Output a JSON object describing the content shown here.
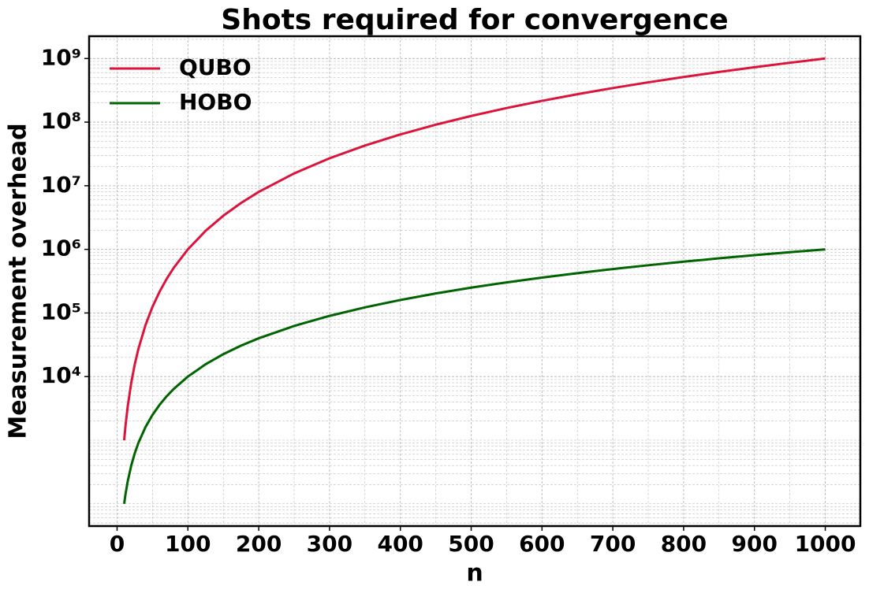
{
  "chart_data": {
    "type": "line",
    "title": "Shots required for convergence",
    "xlabel": "n",
    "ylabel": "Measurement overhead",
    "x": [
      10,
      12,
      15,
      20,
      25,
      30,
      40,
      50,
      60,
      70,
      80,
      100,
      125,
      150,
      175,
      200,
      250,
      300,
      350,
      400,
      450,
      500,
      550,
      600,
      650,
      700,
      750,
      800,
      850,
      900,
      950,
      1000
    ],
    "series": [
      {
        "name": "QUBO",
        "color": "#dc143c",
        "values": [
          1000,
          1728,
          3375,
          8000,
          15625,
          27000,
          64000,
          125000,
          216000,
          343000,
          512000,
          1000000,
          1953125,
          3375000,
          5359375,
          8000000,
          15625000,
          27000000,
          42875000,
          64000000,
          91125000,
          125000000,
          166375000,
          216000000,
          274625000,
          343000000,
          421875000,
          512000000,
          614125000,
          729000000,
          857375000,
          1000000000
        ]
      },
      {
        "name": "HOBO",
        "color": "#006400",
        "values": [
          100,
          144,
          225,
          400,
          625,
          900,
          1600,
          2500,
          3600,
          4900,
          6400,
          10000,
          15625,
          22500,
          30625,
          40000,
          62500,
          90000,
          122500,
          160000,
          202500,
          250000,
          302500,
          360000,
          422500,
          490000,
          562500,
          640000,
          722500,
          810000,
          902500,
          1000000
        ]
      }
    ],
    "xlim": [
      -39.5,
      1049.5
    ],
    "xticks": [
      0,
      100,
      200,
      300,
      400,
      500,
      600,
      700,
      800,
      900,
      1000
    ],
    "ylim": [
      44.7,
      2240000000
    ],
    "yscale": "log",
    "yticks": [
      {
        "value": 10000,
        "label": "10⁴"
      },
      {
        "value": 100000,
        "label": "10⁵"
      },
      {
        "value": 1000000,
        "label": "10⁶"
      },
      {
        "value": 10000000,
        "label": "10⁷"
      },
      {
        "value": 100000000,
        "label": "10⁸"
      },
      {
        "value": 1000000000,
        "label": "10⁹"
      }
    ],
    "grid": true,
    "legend": "upper left"
  }
}
